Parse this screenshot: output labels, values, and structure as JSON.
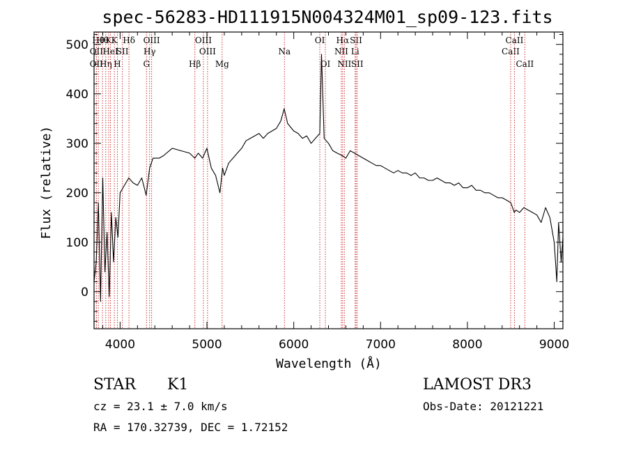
{
  "chart_data": {
    "type": "line",
    "title": "spec-56283-HD111915N004324M01_sp09-123.fits",
    "xlabel": "Wavelength (Å)",
    "ylabel": "Flux (relative)",
    "xlim": [
      3700,
      9100
    ],
    "ylim": [
      -75,
      525
    ],
    "xticks": [
      4000,
      5000,
      6000,
      7000,
      8000,
      9000
    ],
    "yticks": [
      0,
      100,
      200,
      300,
      400,
      500
    ],
    "series": [
      {
        "name": "spectrum",
        "x": [
          3700,
          3725,
          3750,
          3775,
          3800,
          3825,
          3850,
          3875,
          3900,
          3925,
          3950,
          3975,
          4000,
          4050,
          4100,
          4150,
          4200,
          4250,
          4300,
          4340,
          4380,
          4450,
          4500,
          4600,
          4700,
          4800,
          4860,
          4900,
          4950,
          5000,
          5050,
          5100,
          5150,
          5180,
          5200,
          5250,
          5300,
          5350,
          5400,
          5450,
          5500,
          5550,
          5600,
          5650,
          5700,
          5750,
          5800,
          5850,
          5890,
          5930,
          6000,
          6050,
          6100,
          6150,
          6200,
          6250,
          6300,
          6320,
          6350,
          6400,
          6450,
          6500,
          6560,
          6600,
          6650,
          6700,
          6750,
          6800,
          6850,
          6900,
          6950,
          7000,
          7050,
          7100,
          7150,
          7200,
          7250,
          7300,
          7350,
          7400,
          7450,
          7500,
          7550,
          7600,
          7650,
          7700,
          7750,
          7800,
          7850,
          7900,
          7950,
          8000,
          8050,
          8100,
          8150,
          8200,
          8250,
          8300,
          8350,
          8400,
          8450,
          8500,
          8540,
          8560,
          8600,
          8650,
          8700,
          8750,
          8800,
          8850,
          8900,
          8950,
          9000,
          9030,
          9050,
          9080,
          9100
        ],
        "y": [
          20,
          60,
          180,
          -20,
          230,
          40,
          120,
          -10,
          160,
          60,
          150,
          110,
          200,
          215,
          230,
          220,
          215,
          230,
          195,
          250,
          270,
          270,
          275,
          290,
          285,
          280,
          270,
          280,
          270,
          290,
          250,
          235,
          200,
          250,
          235,
          260,
          270,
          280,
          290,
          305,
          310,
          315,
          320,
          310,
          320,
          325,
          330,
          345,
          370,
          340,
          325,
          320,
          310,
          315,
          300,
          310,
          320,
          480,
          310,
          300,
          285,
          280,
          275,
          270,
          285,
          280,
          275,
          270,
          265,
          260,
          255,
          255,
          250,
          245,
          240,
          245,
          240,
          240,
          235,
          240,
          230,
          230,
          225,
          225,
          230,
          225,
          220,
          220,
          215,
          220,
          210,
          210,
          215,
          205,
          205,
          200,
          200,
          195,
          190,
          190,
          185,
          180,
          160,
          165,
          160,
          170,
          165,
          160,
          155,
          140,
          170,
          150,
          100,
          20,
          140,
          60,
          110
        ]
      }
    ],
    "lines": [
      {
        "x": 3750,
        "label": "Hθ",
        "row": 0
      },
      {
        "x": 3727,
        "label": "OII",
        "row": 1
      },
      {
        "x": 3727,
        "label": "OII",
        "row": 2
      },
      {
        "x": 3797,
        "label": "Hθ",
        "row": 0
      },
      {
        "x": 3835,
        "label": "Hη",
        "row": 2
      },
      {
        "x": 3868,
        "label": "K",
        "row": 0
      },
      {
        "x": 3889,
        "label": "HeI",
        "row": 1
      },
      {
        "x": 3934,
        "label": "K",
        "row": 0
      },
      {
        "x": 3969,
        "label": "H",
        "row": 2
      },
      {
        "x": 4026,
        "label": "SII",
        "row": 1
      },
      {
        "x": 4102,
        "label": "Hδ",
        "row": 0
      },
      {
        "x": 4304,
        "label": "G",
        "row": 2
      },
      {
        "x": 4340,
        "label": "Hγ",
        "row": 1
      },
      {
        "x": 4363,
        "label": "OIII",
        "row": 0
      },
      {
        "x": 4861,
        "label": "Hβ",
        "row": 2
      },
      {
        "x": 4959,
        "label": "OIII",
        "row": 0
      },
      {
        "x": 5007,
        "label": "OIII",
        "row": 1
      },
      {
        "x": 5175,
        "label": "Mg",
        "row": 2
      },
      {
        "x": 5893,
        "label": "Na",
        "row": 1
      },
      {
        "x": 6300,
        "label": "OI",
        "row": 0
      },
      {
        "x": 6364,
        "label": "OI",
        "row": 2
      },
      {
        "x": 6548,
        "label": "NII",
        "row": 1
      },
      {
        "x": 6563,
        "label": "Hα",
        "row": 0
      },
      {
        "x": 6583,
        "label": "NII",
        "row": 2
      },
      {
        "x": 6707,
        "label": "Li",
        "row": 1
      },
      {
        "x": 6717,
        "label": "SII",
        "row": 0
      },
      {
        "x": 6731,
        "label": "SII",
        "row": 2
      },
      {
        "x": 8498,
        "label": "CaII",
        "row": 1
      },
      {
        "x": 8542,
        "label": "CaII",
        "row": 0
      },
      {
        "x": 8662,
        "label": "CaII",
        "row": 2
      }
    ]
  },
  "info": {
    "obj_type": "STAR",
    "subclass": "K1",
    "survey": "LAMOST DR3",
    "cz": "cz = 23.1 ± 7.0 km/s",
    "obs_date": "Obs-Date: 20121221",
    "radec": "RA = 170.32739, DEC =    1.72152"
  }
}
